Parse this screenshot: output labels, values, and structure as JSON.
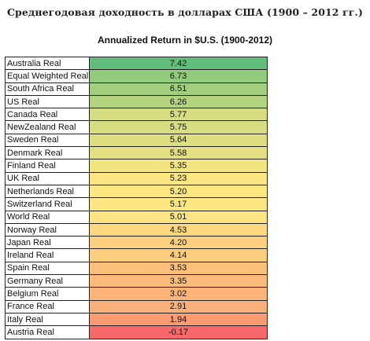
{
  "page_title": "Среднегодовая доходность в долларах США (1900 – 2012 гг.)",
  "table_title": "Annualized Return in $U.S. (1900-2012)",
  "color_scale": {
    "high": "#63be7b",
    "mid": "#fee783",
    "low": "#f8696b"
  },
  "chart_data": {
    "type": "table",
    "title": "Annualized Return in $U.S. (1900-2012)",
    "rows": [
      {
        "name": "Australia Real",
        "value": 7.42,
        "label": "7.42"
      },
      {
        "name": "Equal Weighted Real",
        "value": 6.73,
        "label": "6.73"
      },
      {
        "name": "South Africa Real",
        "value": 6.51,
        "label": "6.51"
      },
      {
        "name": "US Real",
        "value": 6.26,
        "label": "6.26"
      },
      {
        "name": "Canada Real",
        "value": 5.77,
        "label": "5.77"
      },
      {
        "name": "NewZealand Real",
        "value": 5.75,
        "label": "5.75"
      },
      {
        "name": "Sweden Real",
        "value": 5.64,
        "label": "5.64"
      },
      {
        "name": "Denmark Real",
        "value": 5.58,
        "label": "5.58"
      },
      {
        "name": "Finland Real",
        "value": 5.35,
        "label": "5.35"
      },
      {
        "name": "UK Real",
        "value": 5.23,
        "label": "5.23"
      },
      {
        "name": "Netherlands Real",
        "value": 5.2,
        "label": "5.20"
      },
      {
        "name": "Switzerland Real",
        "value": 5.17,
        "label": "5.17"
      },
      {
        "name": "World Real",
        "value": 5.01,
        "label": "5.01"
      },
      {
        "name": "Norway Real",
        "value": 4.53,
        "label": "4.53"
      },
      {
        "name": "Japan Real",
        "value": 4.2,
        "label": "4.20"
      },
      {
        "name": "Ireland Real",
        "value": 4.14,
        "label": "4.14"
      },
      {
        "name": "Spain Real",
        "value": 3.53,
        "label": "3.53"
      },
      {
        "name": "Germany Real",
        "value": 3.35,
        "label": "3.35"
      },
      {
        "name": "Belgium Real",
        "value": 3.02,
        "label": "3.02"
      },
      {
        "name": "France Real",
        "value": 2.91,
        "label": "2.91"
      },
      {
        "name": "Italy Real",
        "value": 1.94,
        "label": "1.94"
      },
      {
        "name": "Austria Real",
        "value": -0.17,
        "label": "-0.17"
      }
    ]
  }
}
